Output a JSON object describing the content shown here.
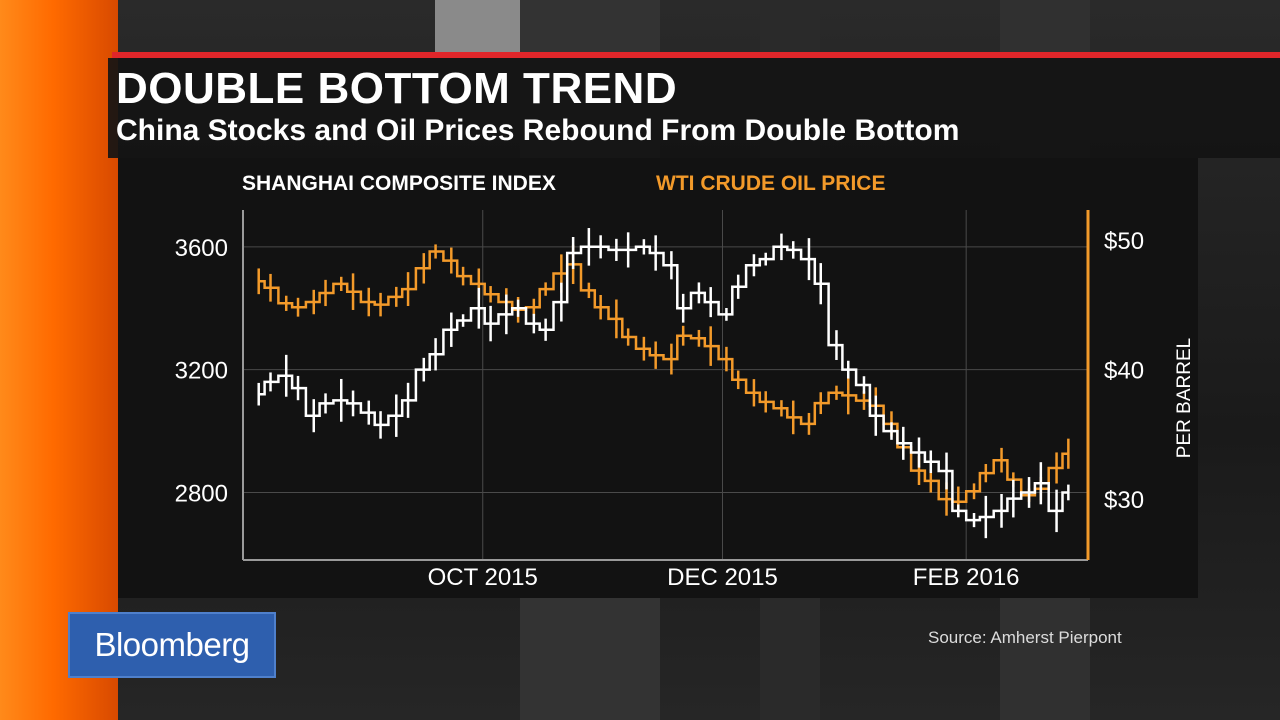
{
  "headline": "DOUBLE BOTTOM TREND",
  "subhead": "China Stocks and Oil Prices Rebound From Double Bottom",
  "brand": "Bloomberg",
  "source": "Source: Amherst Pierpont",
  "colors": {
    "shanghai": "#ffffff",
    "wti": "#f39a2a",
    "brand_blue": "#2e5fae",
    "accent_red": "#e0262a",
    "orange": "#ff6a00"
  },
  "chart_data": {
    "type": "line",
    "title": "DOUBLE BOTTOM TREND",
    "subtitle": "China Stocks and Oil Prices Rebound From Double Bottom",
    "x_tick_labels": [
      "OCT 2015",
      "DEC 2015",
      "FEB 2016"
    ],
    "series": [
      {
        "name": "SHANGHAI COMPOSITE INDEX",
        "axis": "left",
        "axis_ticks": [
          "3600",
          "3200",
          "2800"
        ],
        "ylim": [
          2580,
          3720
        ],
        "color": "#ffffff",
        "x": [
          "2015-08-05",
          "2015-08-08",
          "2015-08-12",
          "2015-08-15",
          "2015-08-19",
          "2015-08-22",
          "2015-08-26",
          "2015-08-29",
          "2015-09-02",
          "2015-09-05",
          "2015-09-09",
          "2015-09-12",
          "2015-09-16",
          "2015-09-19",
          "2015-09-23",
          "2015-09-26",
          "2015-09-30",
          "2015-10-03",
          "2015-10-07",
          "2015-10-10",
          "2015-10-14",
          "2015-10-17",
          "2015-10-21",
          "2015-10-24",
          "2015-10-28",
          "2015-10-31",
          "2015-11-04",
          "2015-11-07",
          "2015-11-11",
          "2015-11-14",
          "2015-11-18",
          "2015-11-21",
          "2015-11-25",
          "2015-11-28",
          "2015-12-02",
          "2015-12-05",
          "2015-12-09",
          "2015-12-12",
          "2015-12-16",
          "2015-12-19",
          "2015-12-23",
          "2015-12-26",
          "2015-12-30",
          "2016-01-02",
          "2016-01-06",
          "2016-01-09",
          "2016-01-13",
          "2016-01-16",
          "2016-01-20",
          "2016-01-23",
          "2016-01-27",
          "2016-01-30",
          "2016-02-03",
          "2016-02-06",
          "2016-02-10",
          "2016-02-13",
          "2016-02-17",
          "2016-02-20",
          "2016-02-24",
          "2016-02-27"
        ],
        "values": [
          3120,
          3160,
          3180,
          3140,
          3050,
          3090,
          3100,
          3090,
          3060,
          3020,
          3050,
          3100,
          3200,
          3250,
          3330,
          3360,
          3400,
          3350,
          3380,
          3400,
          3350,
          3330,
          3420,
          3580,
          3600,
          3600,
          3590,
          3590,
          3600,
          3580,
          3540,
          3400,
          3450,
          3420,
          3380,
          3470,
          3540,
          3560,
          3600,
          3590,
          3560,
          3480,
          3280,
          3200,
          3150,
          3050,
          3000,
          2960,
          2930,
          2900,
          2870,
          2740,
          2710,
          2720,
          2740,
          2780,
          2800,
          2830,
          2740,
          2800
        ]
      },
      {
        "name": "WTI CRUDE OIL PRICE",
        "axis": "right",
        "axis_ticks": [
          "$50",
          "$40",
          "$30"
        ],
        "axis_label": "PER BARREL",
        "ylim": [
          25.3,
          52.3
        ],
        "color": "#f39a2a",
        "x": [
          "2015-08-05",
          "2015-08-08",
          "2015-08-12",
          "2015-08-15",
          "2015-08-19",
          "2015-08-22",
          "2015-08-26",
          "2015-08-29",
          "2015-09-02",
          "2015-09-05",
          "2015-09-09",
          "2015-09-12",
          "2015-09-16",
          "2015-09-19",
          "2015-09-23",
          "2015-09-26",
          "2015-09-30",
          "2015-10-03",
          "2015-10-07",
          "2015-10-10",
          "2015-10-14",
          "2015-10-17",
          "2015-10-21",
          "2015-10-24",
          "2015-10-28",
          "2015-10-31",
          "2015-11-04",
          "2015-11-07",
          "2015-11-11",
          "2015-11-14",
          "2015-11-18",
          "2015-11-21",
          "2015-11-25",
          "2015-11-28",
          "2015-12-02",
          "2015-12-05",
          "2015-12-09",
          "2015-12-12",
          "2015-12-16",
          "2015-12-19",
          "2015-12-23",
          "2015-12-26",
          "2015-12-30",
          "2016-01-02",
          "2016-01-06",
          "2016-01-09",
          "2016-01-13",
          "2016-01-16",
          "2016-01-20",
          "2016-01-23",
          "2016-01-27",
          "2016-01-30",
          "2016-02-03",
          "2016-02-06",
          "2016-02-10",
          "2016-02-13",
          "2016-02-17",
          "2016-02-20",
          "2016-02-24",
          "2016-02-27"
        ],
        "values": [
          46.8,
          46.3,
          45.1,
          44.8,
          45.2,
          45.9,
          46.6,
          46.0,
          45.2,
          45.0,
          45.6,
          46.2,
          47.8,
          49.1,
          48.4,
          47.2,
          46.6,
          45.8,
          45.2,
          44.6,
          44.8,
          46.2,
          47.4,
          48.1,
          46.1,
          44.8,
          43.9,
          42.5,
          41.6,
          41.1,
          40.8,
          42.6,
          42.4,
          41.8,
          40.8,
          39.2,
          38.2,
          37.5,
          37.0,
          36.3,
          35.8,
          37.4,
          38.2,
          38.0,
          37.6,
          37.2,
          35.8,
          34.0,
          32.2,
          31.4,
          30.0,
          29.8,
          30.6,
          32.0,
          33.0,
          31.5,
          30.3,
          30.8,
          32.4,
          33.5
        ]
      }
    ],
    "xlabel": "",
    "ylabel": "",
    "grid": true,
    "legend": "top-left"
  }
}
